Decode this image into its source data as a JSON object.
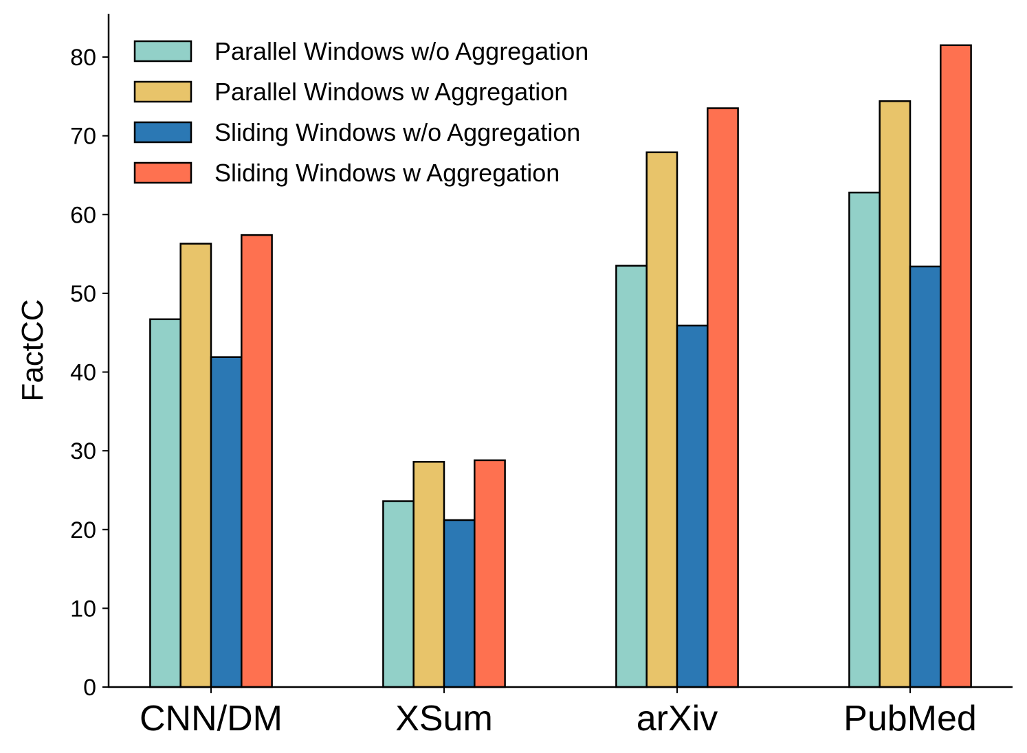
{
  "chart_data": {
    "type": "bar",
    "title": "",
    "xlabel": "",
    "ylabel": "FactCC",
    "categories": [
      "CNN/DM",
      "XSum",
      "arXiv",
      "PubMed"
    ],
    "ylim": [
      0,
      85.5
    ],
    "yticks": [
      0,
      10,
      20,
      30,
      40,
      50,
      60,
      70,
      80
    ],
    "grid": false,
    "legend_position": "top-left",
    "series": [
      {
        "name": "Parallel Windows w/o Aggregation",
        "color": "#92d0c8",
        "values": [
          46.7,
          23.6,
          53.5,
          62.8
        ]
      },
      {
        "name": "Parallel Windows w Aggregation",
        "color": "#e8c46a",
        "values": [
          56.3,
          28.6,
          67.9,
          74.4
        ]
      },
      {
        "name": "Sliding Windows w/o Aggregation",
        "color": "#2b78b4",
        "values": [
          41.9,
          21.2,
          45.9,
          53.4
        ]
      },
      {
        "name": "Sliding Windows w Aggregation",
        "color": "#fe7150",
        "values": [
          57.4,
          28.8,
          73.5,
          81.5
        ]
      }
    ]
  }
}
